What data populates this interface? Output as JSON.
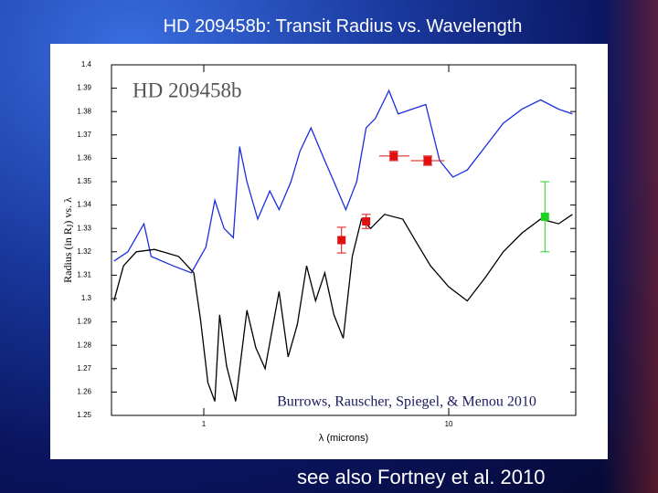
{
  "slide": {
    "title": "HD 209458b: Transit Radius vs. Wavelength",
    "footer": "see also Fortney et al. 2010"
  },
  "chart_data": {
    "type": "line",
    "annotation": "HD 209458b",
    "citation": "Burrows, Rauscher, Spiegel, & Menou 2010",
    "xlabel": "λ (microns)",
    "ylabel": [
      "Radius (in R",
      "J",
      ") vs. λ"
    ],
    "xscale": "log",
    "xlim": [
      0.42,
      33
    ],
    "ylim": [
      1.25,
      1.4
    ],
    "xticks": [
      1,
      10
    ],
    "yticks": [
      1.4,
      1.39,
      1.38,
      1.37,
      1.36,
      1.35,
      1.34,
      1.33,
      1.32,
      1.31,
      1.3,
      1.29,
      1.28,
      1.27,
      1.26,
      1.25
    ],
    "series": [
      {
        "color": "#1a2ee0",
        "x": [
          0.43,
          0.49,
          0.57,
          0.61,
          0.75,
          0.89,
          1.02,
          1.11,
          1.21,
          1.32,
          1.4,
          1.5,
          1.66,
          1.86,
          2.03,
          2.27,
          2.47,
          2.74,
          3.12,
          3.4,
          3.8,
          4.21,
          4.6,
          5.01,
          5.7,
          6.22,
          7.07,
          8.06,
          9.18,
          10.4,
          11.9,
          14.1,
          16.7,
          19.9,
          23.7,
          28.1,
          32.0
        ],
        "y": [
          1.316,
          1.32,
          1.332,
          1.318,
          1.314,
          1.311,
          1.322,
          1.342,
          1.33,
          1.326,
          1.365,
          1.35,
          1.334,
          1.346,
          1.338,
          1.35,
          1.363,
          1.373,
          1.359,
          1.35,
          1.338,
          1.35,
          1.373,
          1.377,
          1.389,
          1.379,
          1.381,
          1.383,
          1.359,
          1.352,
          1.355,
          1.365,
          1.375,
          1.381,
          1.385,
          1.381,
          1.379
        ]
      },
      {
        "color": "#000000",
        "x": [
          0.43,
          0.47,
          0.53,
          0.63,
          0.79,
          0.91,
          0.97,
          1.04,
          1.11,
          1.16,
          1.24,
          1.35,
          1.5,
          1.63,
          1.78,
          2.03,
          2.21,
          2.41,
          2.63,
          2.86,
          3.12,
          3.4,
          3.71,
          4.04,
          4.4,
          4.8,
          5.47,
          6.49,
          7.38,
          8.43,
          10,
          11.9,
          14.1,
          16.7,
          19.9,
          23.7,
          28.1,
          32.0
        ],
        "y": [
          1.299,
          1.314,
          1.32,
          1.321,
          1.318,
          1.311,
          1.291,
          1.264,
          1.256,
          1.293,
          1.271,
          1.256,
          1.295,
          1.279,
          1.27,
          1.303,
          1.275,
          1.289,
          1.314,
          1.299,
          1.311,
          1.293,
          1.283,
          1.318,
          1.334,
          1.33,
          1.336,
          1.334,
          1.324,
          1.314,
          1.305,
          1.299,
          1.309,
          1.32,
          1.328,
          1.334,
          1.332,
          1.336
        ]
      }
    ],
    "points": [
      {
        "color": "#e01010",
        "x": 3.65,
        "y": 1.325,
        "yerr": 0.0055
      },
      {
        "color": "#e01010",
        "x": 4.6,
        "y": 1.333,
        "yerr": 0.003
      },
      {
        "color": "#e01010",
        "x": 5.96,
        "y": 1.361,
        "yerr": 0.002,
        "xlo": 5.2,
        "xhi": 6.9
      },
      {
        "color": "#e01010",
        "x": 8.2,
        "y": 1.359,
        "yerr": 0.002,
        "xlo": 7.0,
        "xhi": 9.6
      },
      {
        "color": "#20d020",
        "x": 24.7,
        "y": 1.335,
        "yerr": 0.015
      }
    ]
  }
}
